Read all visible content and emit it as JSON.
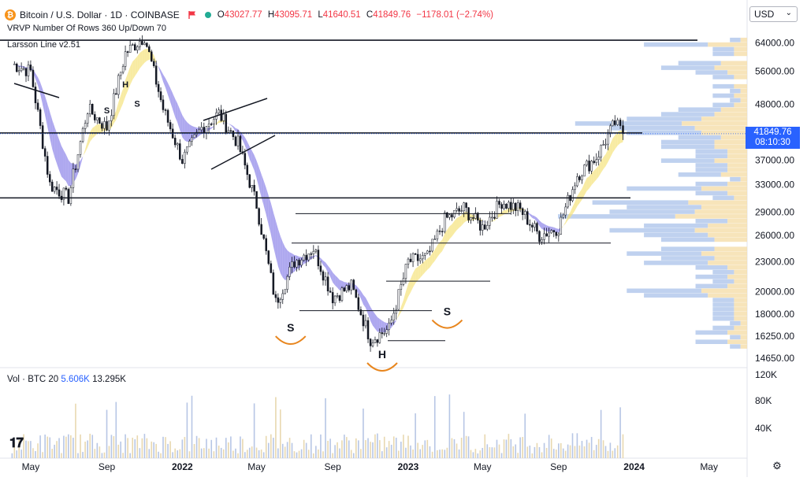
{
  "header": {
    "logo_letter": "₿",
    "symbol_title": "Bitcoin / U.S. Dollar · 1D · COINBASE",
    "ohlc": {
      "o_label": "O",
      "o": "43027.77",
      "h_label": "H",
      "h": "43095.71",
      "l_label": "L",
      "l": "41640.51",
      "c_label": "C",
      "c": "41849.76",
      "change": "−1178.01 (−2.74%)"
    }
  },
  "indicators": {
    "vrvp": "VRVP Number Of Rows 360 Up/Down 70",
    "larsson": "Larsson Line v2.51",
    "volume_name": "Vol · BTC 20",
    "volume_v1": "5.606K",
    "volume_v2": "13.295K"
  },
  "currency": {
    "selected": "USD"
  },
  "price_tag": {
    "price": "41849.76",
    "countdown": "08:10:30"
  },
  "colors": {
    "accent": "#2962ff",
    "up": "#22ab94",
    "down": "#f23645",
    "bitcoin": "#f7931a",
    "larsson_up": "#f5e27a",
    "larsson_down": "#8b83e8",
    "annotation_orange": "#e8861e"
  },
  "icons": {
    "logo": "bitcoin-logo-icon",
    "flag": "flag-icon",
    "status": "green-dot-icon",
    "settings": "gear-icon",
    "tv": "tradingview-logo-icon"
  },
  "chart_data": {
    "type": "candlestick",
    "title": "Bitcoin / U.S. Dollar · 1D · COINBASE",
    "ylim": [
      14650,
      67000
    ],
    "y_scale": "log",
    "y_ticks": [
      "64000.00",
      "56000.00",
      "48000.00",
      "42000.00",
      "37000.00",
      "33000.00",
      "29000.00",
      "26000.00",
      "23000.00",
      "20000.00",
      "18000.00",
      "16250.00",
      "14650.00"
    ],
    "x_ticks": [
      "May",
      "Sep",
      "2022",
      "May",
      "Sep",
      "2023",
      "May",
      "Sep",
      "2024",
      "May"
    ],
    "volume_ticks": [
      "120K",
      "80K",
      "40K"
    ],
    "price_path_approx": [
      {
        "x": "2021-04",
        "y": 58000
      },
      {
        "x": "2021-05",
        "y": 56000
      },
      {
        "x": "2021-06",
        "y": 33000
      },
      {
        "x": "2021-07",
        "y": 31000
      },
      {
        "x": "2021-08",
        "y": 47000
      },
      {
        "x": "2021-09",
        "y": 43000
      },
      {
        "x": "2021-10",
        "y": 61000
      },
      {
        "x": "2021-11",
        "y": 66000
      },
      {
        "x": "2021-12",
        "y": 47000
      },
      {
        "x": "2022-01",
        "y": 37000
      },
      {
        "x": "2022-02",
        "y": 43000
      },
      {
        "x": "2022-03",
        "y": 46000
      },
      {
        "x": "2022-04",
        "y": 40000
      },
      {
        "x": "2022-05",
        "y": 30000
      },
      {
        "x": "2022-06",
        "y": 19000
      },
      {
        "x": "2022-07",
        "y": 23000
      },
      {
        "x": "2022-08",
        "y": 24500
      },
      {
        "x": "2022-09",
        "y": 19500
      },
      {
        "x": "2022-10",
        "y": 20500
      },
      {
        "x": "2022-11",
        "y": 16000
      },
      {
        "x": "2022-12",
        "y": 16800
      },
      {
        "x": "2023-01",
        "y": 23000
      },
      {
        "x": "2023-02",
        "y": 23500
      },
      {
        "x": "2023-03",
        "y": 28000
      },
      {
        "x": "2023-04",
        "y": 29500
      },
      {
        "x": "2023-05",
        "y": 27000
      },
      {
        "x": "2023-06",
        "y": 30500
      },
      {
        "x": "2023-07",
        "y": 29300
      },
      {
        "x": "2023-08",
        "y": 26000
      },
      {
        "x": "2023-09",
        "y": 27000
      },
      {
        "x": "2023-10",
        "y": 34500
      },
      {
        "x": "2023-11",
        "y": 37500
      },
      {
        "x": "2023-12",
        "y": 44000
      },
      {
        "x": "2023-12-14",
        "y": 41849.76
      }
    ],
    "horizontal_levels": [
      64800,
      42000,
      31000,
      28800,
      25100,
      21000,
      18300,
      15900
    ],
    "annotations": [
      "H",
      "S",
      "S",
      "S",
      "S",
      "H"
    ]
  }
}
